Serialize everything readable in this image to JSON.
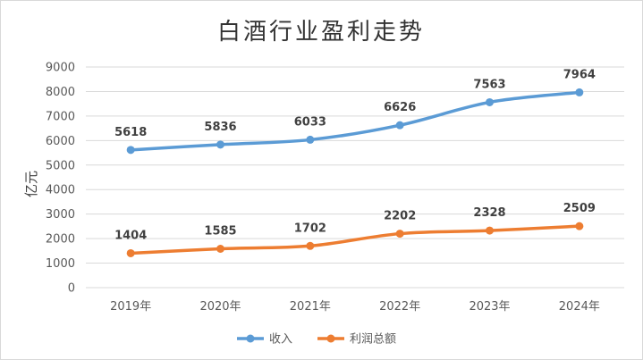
{
  "chart_data": {
    "type": "line",
    "title": "白酒行业盈利走势",
    "xlabel": "",
    "ylabel": "亿元",
    "categories": [
      "2019年",
      "2020年",
      "2021年",
      "2022年",
      "2023年",
      "2024年"
    ],
    "ylim": [
      0,
      9000
    ],
    "yticks": [
      0,
      1000,
      2000,
      3000,
      4000,
      5000,
      6000,
      7000,
      8000,
      9000
    ],
    "grid": true,
    "legend": "bottom",
    "series": [
      {
        "name": "收入",
        "color": "#5b9bd5",
        "values": [
          5618,
          5836,
          6033,
          6626,
          7563,
          7964
        ]
      },
      {
        "name": "利润总额",
        "color": "#ed7d31",
        "values": [
          1404,
          1585,
          1702,
          2202,
          2328,
          2509
        ]
      }
    ]
  }
}
